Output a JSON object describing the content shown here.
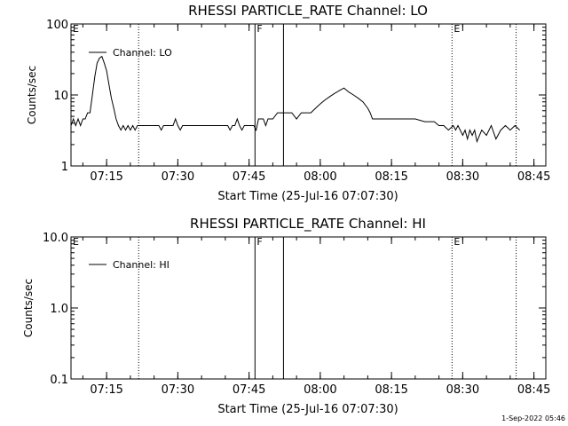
{
  "chart_data": [
    {
      "type": "line",
      "title": "RHESSI PARTICLE_RATE Channel: LO",
      "xlabel": "Start Time (25-Jul-16 07:07:30)",
      "ylabel": "Counts/sec",
      "yscale": "log",
      "ylim": [
        1,
        100
      ],
      "yticks": [
        "1",
        "10",
        "100"
      ],
      "xlim": [
        "07:07:30",
        "08:47:30"
      ],
      "xticks": [
        "07:15",
        "07:30",
        "07:45",
        "08:00",
        "08:15",
        "08:30",
        "08:45"
      ],
      "legend": "top-left",
      "markers": [
        {
          "label": "E",
          "time": "07:07:30",
          "style": "dotted"
        },
        {
          "label": "",
          "time": "07:21:45",
          "style": "dotted"
        },
        {
          "label": "F",
          "time": "07:46:15",
          "style": "solid"
        },
        {
          "label": "",
          "time": "07:52:15",
          "style": "solid"
        },
        {
          "label": "E",
          "time": "08:27:45",
          "style": "dotted"
        },
        {
          "label": "",
          "time": "08:41:15",
          "style": "dotted"
        }
      ],
      "series": [
        {
          "name": "Channel: LO",
          "x": [
            "07:07:30",
            "07:08:00",
            "07:08:30",
            "07:09:00",
            "07:09:30",
            "07:10:00",
            "07:10:30",
            "07:11:00",
            "07:11:30",
            "07:12:00",
            "07:12:30",
            "07:13:00",
            "07:13:30",
            "07:14:00",
            "07:14:30",
            "07:15:00",
            "07:15:30",
            "07:16:00",
            "07:16:30",
            "07:17:00",
            "07:17:30",
            "07:18:00",
            "07:18:30",
            "07:19:00",
            "07:19:30",
            "07:20:00",
            "07:20:30",
            "07:21:00",
            "07:21:30",
            "07:22:00",
            "07:25:00",
            "07:26:00",
            "07:26:30",
            "07:27:00",
            "07:29:00",
            "07:29:30",
            "07:30:00",
            "07:30:30",
            "07:31:00",
            "07:40:00",
            "07:40:30",
            "07:41:00",
            "07:41:30",
            "07:42:00",
            "07:42:30",
            "07:43:00",
            "07:43:30",
            "07:44:00",
            "07:45:00",
            "07:46:00",
            "07:46:30",
            "07:47:00",
            "07:48:00",
            "07:48:30",
            "07:49:00",
            "07:50:00",
            "07:51:00",
            "07:52:00",
            "07:54:00",
            "07:55:00",
            "07:56:00",
            "07:57:00",
            "07:58:00",
            "07:59:00",
            "08:00:00",
            "08:01:00",
            "08:02:00",
            "08:03:00",
            "08:04:00",
            "08:05:00",
            "08:06:00",
            "08:07:00",
            "08:08:00",
            "08:09:00",
            "08:10:00",
            "08:10:30",
            "08:11:00",
            "08:12:00",
            "08:13:00",
            "08:14:00",
            "08:15:00",
            "08:20:00",
            "08:22:00",
            "08:24:00",
            "08:25:00",
            "08:26:00",
            "08:27:00",
            "08:28:00",
            "08:28:30",
            "08:29:00",
            "08:30:00",
            "08:30:30",
            "08:31:00",
            "08:31:30",
            "08:32:00",
            "08:32:30",
            "08:33:00",
            "08:34:00",
            "08:35:00",
            "08:36:00",
            "08:37:00",
            "08:38:00",
            "08:39:00",
            "08:40:00",
            "08:41:00",
            "08:42:00"
          ],
          "y": [
            3.7,
            4.6,
            3.7,
            4.6,
            3.7,
            4.6,
            4.6,
            5.6,
            5.6,
            10,
            18,
            28,
            33,
            35,
            28,
            22,
            14,
            9,
            6.5,
            4.6,
            3.7,
            3.2,
            3.7,
            3.2,
            3.7,
            3.2,
            3.7,
            3.2,
            3.7,
            3.7,
            3.7,
            3.7,
            3.2,
            3.7,
            3.7,
            4.6,
            3.7,
            3.2,
            3.7,
            3.7,
            3.7,
            3.2,
            3.7,
            3.7,
            4.6,
            3.7,
            3.2,
            3.7,
            3.7,
            3.7,
            3.2,
            4.6,
            4.6,
            3.7,
            4.6,
            4.6,
            5.6,
            5.6,
            5.6,
            4.6,
            5.6,
            5.6,
            5.6,
            6.5,
            7.5,
            8.5,
            9.5,
            10.5,
            11.5,
            12.5,
            11,
            10,
            9,
            8,
            6.5,
            5.6,
            4.6,
            4.6,
            4.6,
            4.6,
            4.6,
            4.6,
            4.2,
            4.2,
            3.7,
            3.7,
            3.2,
            3.7,
            3.2,
            3.7,
            2.7,
            3.2,
            2.4,
            3.2,
            2.7,
            3.2,
            2.2,
            3.2,
            2.7,
            3.7,
            2.4,
            3.2,
            3.7,
            3.2,
            3.7,
            3.2
          ]
        }
      ]
    },
    {
      "type": "line",
      "title": "RHESSI PARTICLE_RATE Channel: HI",
      "xlabel": "Start Time (25-Jul-16 07:07:30)",
      "ylabel": "Counts/sec",
      "yscale": "log",
      "ylim": [
        0.1,
        10
      ],
      "yticks": [
        "0.1",
        "1.0",
        "10.0"
      ],
      "xlim": [
        "07:07:30",
        "08:47:30"
      ],
      "xticks": [
        "07:15",
        "07:30",
        "07:45",
        "08:00",
        "08:15",
        "08:30",
        "08:45"
      ],
      "legend": "top-left",
      "markers": [
        {
          "label": "E",
          "time": "07:07:30",
          "style": "dotted"
        },
        {
          "label": "",
          "time": "07:21:45",
          "style": "dotted"
        },
        {
          "label": "F",
          "time": "07:46:15",
          "style": "solid"
        },
        {
          "label": "",
          "time": "07:52:15",
          "style": "solid"
        },
        {
          "label": "E",
          "time": "08:27:45",
          "style": "dotted"
        },
        {
          "label": "",
          "time": "08:41:15",
          "style": "dotted"
        }
      ],
      "series": [
        {
          "name": "Channel: HI",
          "x": [],
          "y": []
        }
      ]
    }
  ],
  "footer": {
    "timestamp": "1-Sep-2022 05:46"
  }
}
